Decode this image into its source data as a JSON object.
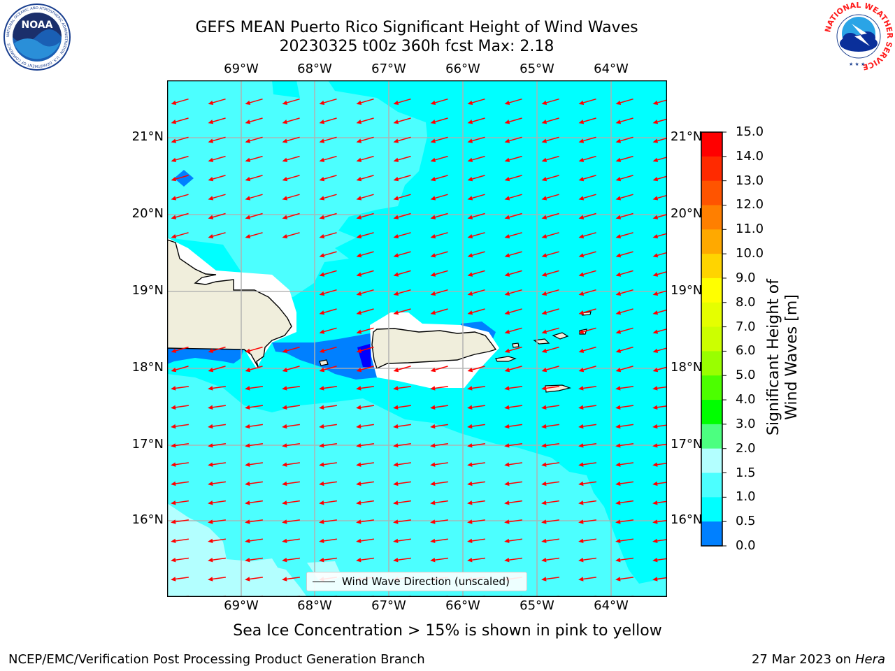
{
  "title": {
    "line1": "GEFS MEAN Puerto Rico Significant Height of Wind Waves",
    "line2": "20230325 t00z 360h fcst   Max: 2.18"
  },
  "map": {
    "lon_labels": [
      "69°W",
      "68°W",
      "67°W",
      "66°W",
      "65°W",
      "64°W"
    ],
    "lat_labels": [
      "21°N",
      "20°N",
      "19°N",
      "18°N",
      "17°N",
      "16°N"
    ],
    "legend": "Wind Wave Direction (unscaled)",
    "arrow_color": "#ff0000",
    "colors": {
      "band_0_0_5": "#0000ff",
      "band_0_5_1_0": "#0080ff",
      "band_1_0_1_5": "#00ffff",
      "band_1_5_2_0": "#4cffff",
      "band_2_0_3_0": "#b3ffff",
      "land": "#f0eedc"
    }
  },
  "colorbar": {
    "label": "Significant Height of Wind Waves [m]",
    "ticks": [
      "15.0",
      "14.0",
      "13.0",
      "12.0",
      "11.0",
      "10.0",
      "9.0",
      "8.0",
      "7.0",
      "6.0",
      "5.0",
      "4.0",
      "3.0",
      "2.0",
      "1.5",
      "1.0",
      "0.5",
      "0.0"
    ],
    "colors": [
      "#ff0000",
      "#ff2a00",
      "#ff5400",
      "#ff7f00",
      "#ffa900",
      "#ffd400",
      "#ffff00",
      "#e5ff00",
      "#ccff00",
      "#99ff00",
      "#4cff00",
      "#00ff00",
      "#4cff80",
      "#b3ffff",
      "#4cffff",
      "#00ffff",
      "#0080ff",
      "#0000ff"
    ]
  },
  "logos": {
    "noaa_text": "NOAA",
    "noaa_ring": "NATIONAL OCEANIC AND ATMOSPHERIC ADMINISTRATION · U.S. DEPARTMENT OF COMMERCE",
    "nws_ring": "NATIONAL WEATHER SERVICE"
  },
  "footer": {
    "sea_ice": "Sea Ice Concentration > 15% is shown in pink to yellow",
    "branch": "NCEP/EMC/Verification Post Processing Product Generation Branch",
    "date": "27 Mar 2023 on",
    "machine": "Hera"
  }
}
